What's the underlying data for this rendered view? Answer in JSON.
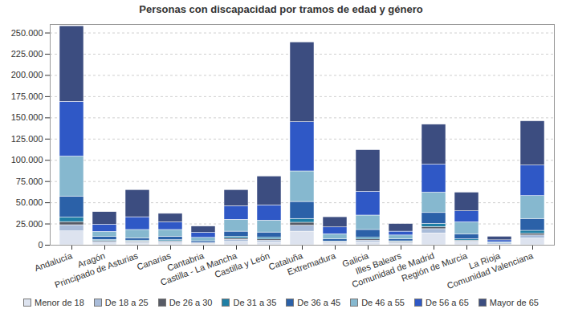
{
  "chart_data": {
    "type": "bar",
    "stacked": true,
    "title": "Personas con discapacidad por tramos de edad y género",
    "categories": [
      "Andalucía",
      "Aragón",
      "Principado de Asturias",
      "Canarias",
      "Cantabria",
      "Castilla - La Mancha",
      "Castilla y León",
      "Cataluña",
      "Extremadura",
      "Galicia",
      "Illes Balears",
      "Comunidad de Madrid",
      "Región de Murcia",
      "La Rioja",
      "Comunidad Valenciana"
    ],
    "series": [
      {
        "name": "Menor de 18",
        "color": "#dde3ef",
        "values": [
          16400,
          2500,
          2000,
          2500,
          1000,
          4000,
          3500,
          16000,
          2000,
          3500,
          2000,
          14000,
          3000,
          500,
          8000
        ]
      },
      {
        "name": "De 18 a 25",
        "color": "#a9bcd9",
        "values": [
          7200,
          1500,
          1500,
          1500,
          700,
          2500,
          2000,
          7000,
          1000,
          2000,
          1200,
          5000,
          1500,
          300,
          3500
        ]
      },
      {
        "name": "De 26 a 30",
        "color": "#575b66",
        "values": [
          3700,
          1000,
          1000,
          800,
          400,
          1500,
          1500,
          3500,
          700,
          1500,
          700,
          2500,
          1000,
          200,
          2000
        ]
      },
      {
        "name": "De 31 a 35",
        "color": "#1f7fa5",
        "values": [
          5400,
          1200,
          1000,
          1200,
          600,
          2000,
          2000,
          4500,
          800,
          2000,
          800,
          3500,
          1500,
          300,
          3500
        ]
      },
      {
        "name": "De 36 a 45",
        "color": "#2b61a8",
        "values": [
          24600,
          3500,
          2500,
          4000,
          2000,
          6000,
          6000,
          20000,
          2500,
          9000,
          2300,
          13000,
          6000,
          800,
          14000
        ]
      },
      {
        "name": "De 46 a 55",
        "color": "#86b8cf",
        "values": [
          47200,
          6000,
          10000,
          8000,
          4000,
          14000,
          14000,
          36000,
          6000,
          17000,
          4500,
          24000,
          14000,
          1500,
          27000
        ]
      },
      {
        "name": "De 56 a 65",
        "color": "#2f58c6",
        "values": [
          64500,
          8500,
          15000,
          9000,
          6000,
          16000,
          18000,
          58000,
          8000,
          28000,
          4500,
          33000,
          13000,
          2200,
          36000
        ]
      },
      {
        "name": "Mayor de 65",
        "color": "#3c4d80",
        "values": [
          89000,
          14800,
          32000,
          10000,
          7300,
          19000,
          34000,
          94000,
          12000,
          49000,
          9000,
          47000,
          22000,
          4200,
          52000
        ]
      }
    ],
    "ylim": [
      0,
      260000
    ],
    "yticks": [
      0,
      {
        "value": 25000,
        "label": "25.000"
      },
      {
        "value": 50000,
        "label": "50.000"
      },
      {
        "value": 75000,
        "label": "75.000"
      },
      {
        "value": 100000,
        "label": "100.000"
      },
      {
        "value": 125000,
        "label": "125.000"
      },
      {
        "value": 150000,
        "label": "150.000"
      },
      {
        "value": 175000,
        "label": "175.000"
      },
      {
        "value": 200000,
        "label": "200.000"
      },
      {
        "value": 225000,
        "label": "225.000"
      },
      {
        "value": 250000,
        "label": "250.000"
      }
    ],
    "grid": true,
    "legend": "bottom"
  }
}
